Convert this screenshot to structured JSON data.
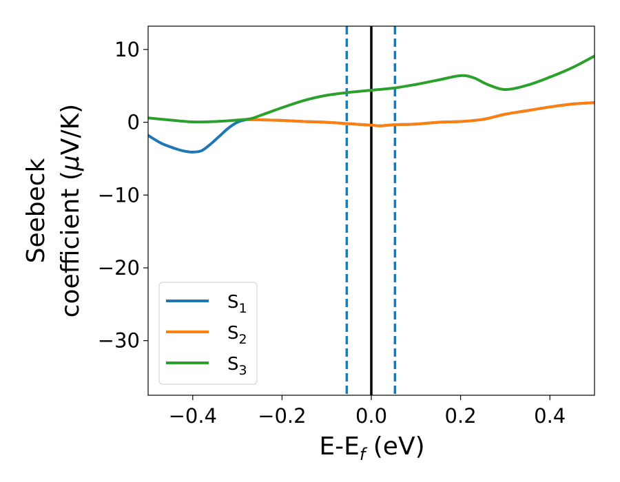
{
  "chart_data": {
    "type": "line",
    "title": "",
    "xlabel": "E-E",
    "xlabel_sub": "f",
    "xlabel_unit": " (eV)",
    "ylabel_line1": "Seebeck",
    "ylabel_line2": "coefficient  (",
    "ylabel_mu": "μ",
    "ylabel_unit": "V/K)",
    "xlim": [
      -0.5,
      0.5
    ],
    "ylim": [
      -37.5,
      13.2
    ],
    "grid": false,
    "xticks": [
      -0.4,
      -0.2,
      0.0,
      0.2,
      0.4
    ],
    "xtick_labels": [
      "−0.4",
      "−0.2",
      "0.0",
      "0.2",
      "0.4"
    ],
    "yticks": [
      10,
      0,
      -10,
      -20,
      -30
    ],
    "ytick_labels": [
      "10",
      "0",
      "−10",
      "−20",
      "−30"
    ],
    "legend_position": "lower-left",
    "series": [
      {
        "name": "S1",
        "label_main": "S",
        "label_sub": "1",
        "color": "#1f77b4",
        "x": [
          -0.5,
          -0.47,
          -0.44,
          -0.42,
          -0.4,
          -0.38,
          -0.36,
          -0.34,
          -0.32,
          -0.3,
          -0.28,
          -0.26,
          -0.2,
          -0.15,
          -0.1,
          -0.05,
          0.0,
          0.02,
          0.05,
          0.1,
          0.15,
          0.2,
          0.25,
          0.3,
          0.35,
          0.4,
          0.45,
          0.5
        ],
        "y": [
          -1.8,
          -2.9,
          -3.6,
          -3.95,
          -4.1,
          -3.9,
          -3.0,
          -1.9,
          -0.8,
          0.0,
          0.35,
          0.35,
          0.25,
          0.1,
          0.0,
          -0.2,
          -0.4,
          -0.5,
          -0.35,
          -0.25,
          0.0,
          0.1,
          0.4,
          1.1,
          1.6,
          2.1,
          2.5,
          2.7
        ]
      },
      {
        "name": "S2",
        "label_main": "S",
        "label_sub": "2",
        "color": "#ff7f0e",
        "x": [
          -0.28,
          -0.26,
          -0.2,
          -0.15,
          -0.1,
          -0.05,
          0.0,
          0.02,
          0.05,
          0.1,
          0.15,
          0.2,
          0.25,
          0.3,
          0.35,
          0.4,
          0.45,
          0.5
        ],
        "y": [
          0.35,
          0.35,
          0.25,
          0.1,
          0.0,
          -0.2,
          -0.4,
          -0.5,
          -0.35,
          -0.25,
          0.0,
          0.1,
          0.4,
          1.1,
          1.6,
          2.1,
          2.5,
          2.7
        ]
      },
      {
        "name": "S3",
        "label_main": "S",
        "label_sub": "3",
        "color": "#2ca02c",
        "x": [
          -0.5,
          -0.45,
          -0.4,
          -0.35,
          -0.3,
          -0.27,
          -0.25,
          -0.2,
          -0.15,
          -0.1,
          -0.05,
          0.0,
          0.05,
          0.1,
          0.15,
          0.2,
          0.23,
          0.26,
          0.3,
          0.35,
          0.4,
          0.45,
          0.5
        ],
        "y": [
          0.6,
          0.3,
          0.05,
          0.1,
          0.3,
          0.5,
          0.9,
          2.0,
          3.0,
          3.7,
          4.1,
          4.4,
          4.7,
          5.2,
          5.8,
          6.4,
          6.1,
          5.2,
          4.5,
          5.1,
          6.2,
          7.5,
          9.1
        ]
      }
    ],
    "vlines": [
      {
        "x": -0.055,
        "style": "dashed",
        "color": "#1f77b4"
      },
      {
        "x": 0.0,
        "style": "solid",
        "color": "#000000"
      },
      {
        "x": 0.053,
        "style": "dashed",
        "color": "#1f77b4"
      }
    ]
  }
}
